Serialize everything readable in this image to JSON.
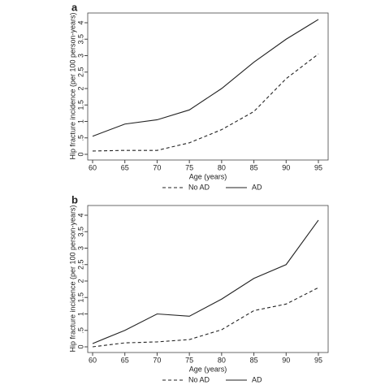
{
  "chart_data": [
    {
      "type": "line",
      "title": "a",
      "x": [
        60,
        65,
        70,
        75,
        80,
        85,
        90,
        95
      ],
      "x_label": "Age (years)",
      "y_label": "Hip fracture incidence (per 100 person-years)",
      "xlim": [
        60,
        95
      ],
      "xticks": [
        60,
        65,
        70,
        75,
        80,
        85,
        90,
        95
      ],
      "ylim": [
        0,
        4
      ],
      "yticks": [
        0,
        {
          "value": 0.5,
          "label": ".5"
        },
        1,
        1.5,
        2,
        2.5,
        3,
        3.5,
        4
      ],
      "series": [
        {
          "name": "No AD",
          "color": "#222222",
          "dash": "dashed",
          "values": [
            0.1,
            0.12,
            0.12,
            0.35,
            0.75,
            1.3,
            2.3,
            3.05
          ]
        },
        {
          "name": "AD",
          "color": "#222222",
          "dash": "solid",
          "values": [
            0.55,
            0.92,
            1.05,
            1.35,
            2.0,
            2.8,
            3.5,
            4.1
          ]
        }
      ]
    },
    {
      "type": "line",
      "title": "b",
      "x": [
        60,
        65,
        70,
        75,
        80,
        85,
        90,
        95
      ],
      "x_label": "Age (years)",
      "y_label": "Hip fracture incidence (per 100 person-years)",
      "xlim": [
        60,
        95
      ],
      "xticks": [
        60,
        65,
        70,
        75,
        80,
        85,
        90,
        95
      ],
      "ylim": [
        0,
        4
      ],
      "yticks": [
        0,
        {
          "value": 0.5,
          "label": ".5"
        },
        1,
        1.5,
        2,
        2.5,
        3,
        3.5,
        4
      ],
      "series": [
        {
          "name": "No AD",
          "color": "#222222",
          "dash": "dashed",
          "values": [
            0,
            0.12,
            0.15,
            0.22,
            0.52,
            1.1,
            1.3,
            1.8
          ]
        },
        {
          "name": "AD",
          "color": "#222222",
          "dash": "solid",
          "values": [
            0.1,
            0.5,
            1.0,
            0.93,
            1.45,
            2.08,
            2.5,
            3.85
          ]
        }
      ]
    }
  ]
}
